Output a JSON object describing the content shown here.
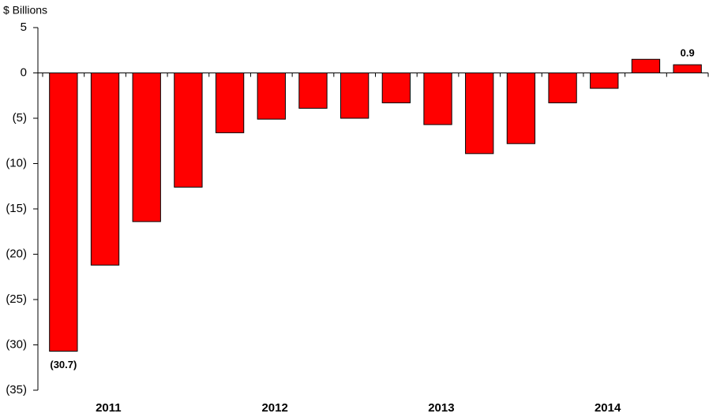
{
  "chart_data": {
    "type": "bar",
    "y_label": "$ Billions",
    "categories": [
      null,
      null,
      null,
      null,
      null,
      null,
      null,
      null,
      null,
      null,
      null,
      null,
      null,
      null,
      null,
      null
    ],
    "x_groups": [
      "2011",
      "2012",
      "2013",
      "2014"
    ],
    "values": [
      -30.7,
      -21.2,
      -16.4,
      -12.6,
      -6.6,
      -5.1,
      -3.9,
      -5.0,
      -3.3,
      -5.7,
      -8.9,
      -7.8,
      -3.3,
      -1.7,
      1.5,
      0.9
    ],
    "value_labels": [
      "(30.7)",
      null,
      null,
      null,
      null,
      null,
      null,
      null,
      null,
      null,
      null,
      null,
      null,
      null,
      null,
      "0.9"
    ],
    "color": "#ff0000",
    "ylim": [
      -35,
      5
    ],
    "yticks": [
      5,
      0,
      {
        "value": -5,
        "label": "(5)"
      },
      {
        "value": -10,
        "label": "(10)"
      },
      {
        "value": -15,
        "label": "(15)"
      },
      {
        "value": -20,
        "label": "(20)"
      },
      {
        "value": -25,
        "label": "(25)"
      },
      {
        "value": -30,
        "label": "(30)"
      },
      {
        "value": -35,
        "label": "(35)"
      }
    ]
  }
}
